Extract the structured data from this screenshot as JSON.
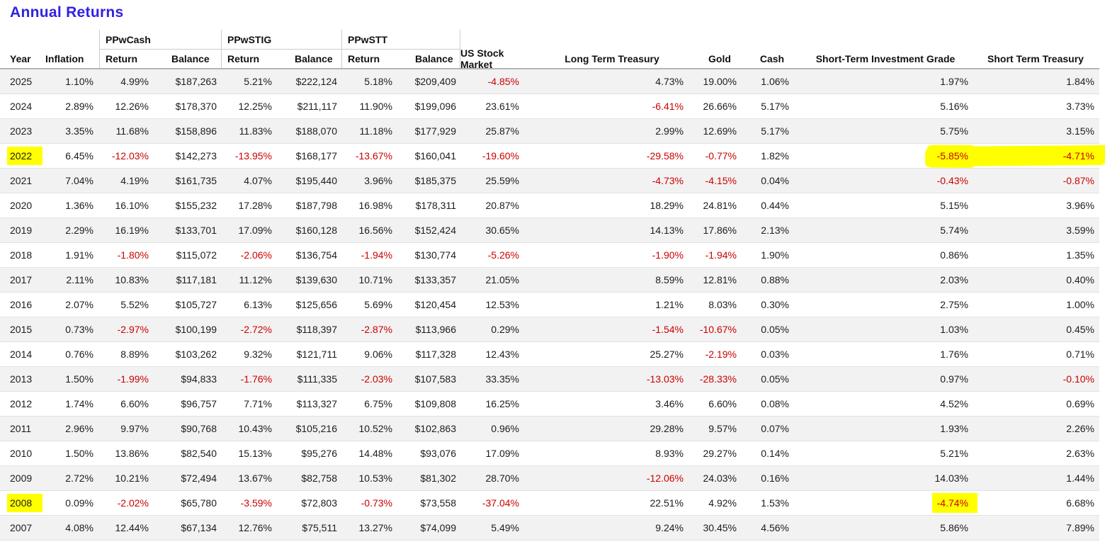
{
  "page_title": "Annual Returns",
  "colors": {
    "title_blue": "#3121e4",
    "negative_red": "#cc0000",
    "highlight_yellow": "#ffff00",
    "row_stripe": "#f2f2f2",
    "header_border": "#cccccc"
  },
  "table": {
    "groups": [
      {
        "label": "PPwCash"
      },
      {
        "label": "PPwSTIG"
      },
      {
        "label": "PPwSTT"
      }
    ],
    "columns": [
      {
        "key": "year",
        "label": "Year"
      },
      {
        "key": "inflation",
        "label": "Inflation"
      },
      {
        "key": "ppwcash-return",
        "label": "Return"
      },
      {
        "key": "ppwcash-balance",
        "label": "Balance"
      },
      {
        "key": "ppwstig-return",
        "label": "Return"
      },
      {
        "key": "ppwstig-balance",
        "label": "Balance"
      },
      {
        "key": "ppwstt-return",
        "label": "Return"
      },
      {
        "key": "ppwstt-balance",
        "label": "Balance"
      },
      {
        "key": "us-stock-market",
        "label": "US Stock Market"
      },
      {
        "key": "long-term-treasury",
        "label": "Long Term Treasury"
      },
      {
        "key": "gold",
        "label": "Gold"
      },
      {
        "key": "cash",
        "label": "Cash"
      },
      {
        "key": "short-term-investment-grade",
        "label": "Short-Term Investment Grade"
      },
      {
        "key": "short-term-treasury",
        "label": "Short Term Treasury"
      }
    ],
    "rows": [
      [
        "2025",
        "1.10%",
        "4.99%",
        "$187,263",
        "5.21%",
        "$222,124",
        "5.18%",
        "$209,409",
        "-4.85%",
        "4.73%",
        "19.00%",
        "1.06%",
        "1.97%",
        "1.84%"
      ],
      [
        "2024",
        "2.89%",
        "12.26%",
        "$178,370",
        "12.25%",
        "$211,117",
        "11.90%",
        "$199,096",
        "23.61%",
        "-6.41%",
        "26.66%",
        "5.17%",
        "5.16%",
        "3.73%"
      ],
      [
        "2023",
        "3.35%",
        "11.68%",
        "$158,896",
        "11.83%",
        "$188,070",
        "11.18%",
        "$177,929",
        "25.87%",
        "2.99%",
        "12.69%",
        "5.17%",
        "5.75%",
        "3.15%"
      ],
      [
        "2022",
        "6.45%",
        "-12.03%",
        "$142,273",
        "-13.95%",
        "$168,177",
        "-13.67%",
        "$160,041",
        "-19.60%",
        "-29.58%",
        "-0.77%",
        "1.82%",
        "-5.85%",
        "-4.71%"
      ],
      [
        "2021",
        "7.04%",
        "4.19%",
        "$161,735",
        "4.07%",
        "$195,440",
        "3.96%",
        "$185,375",
        "25.59%",
        "-4.73%",
        "-4.15%",
        "0.04%",
        "-0.43%",
        "-0.87%"
      ],
      [
        "2020",
        "1.36%",
        "16.10%",
        "$155,232",
        "17.28%",
        "$187,798",
        "16.98%",
        "$178,311",
        "20.87%",
        "18.29%",
        "24.81%",
        "0.44%",
        "5.15%",
        "3.96%"
      ],
      [
        "2019",
        "2.29%",
        "16.19%",
        "$133,701",
        "17.09%",
        "$160,128",
        "16.56%",
        "$152,424",
        "30.65%",
        "14.13%",
        "17.86%",
        "2.13%",
        "5.74%",
        "3.59%"
      ],
      [
        "2018",
        "1.91%",
        "-1.80%",
        "$115,072",
        "-2.06%",
        "$136,754",
        "-1.94%",
        "$130,774",
        "-5.26%",
        "-1.90%",
        "-1.94%",
        "1.90%",
        "0.86%",
        "1.35%"
      ],
      [
        "2017",
        "2.11%",
        "10.83%",
        "$117,181",
        "11.12%",
        "$139,630",
        "10.71%",
        "$133,357",
        "21.05%",
        "8.59%",
        "12.81%",
        "0.88%",
        "2.03%",
        "0.40%"
      ],
      [
        "2016",
        "2.07%",
        "5.52%",
        "$105,727",
        "6.13%",
        "$125,656",
        "5.69%",
        "$120,454",
        "12.53%",
        "1.21%",
        "8.03%",
        "0.30%",
        "2.75%",
        "1.00%"
      ],
      [
        "2015",
        "0.73%",
        "-2.97%",
        "$100,199",
        "-2.72%",
        "$118,397",
        "-2.87%",
        "$113,966",
        "0.29%",
        "-1.54%",
        "-10.67%",
        "0.05%",
        "1.03%",
        "0.45%"
      ],
      [
        "2014",
        "0.76%",
        "8.89%",
        "$103,262",
        "9.32%",
        "$121,711",
        "9.06%",
        "$117,328",
        "12.43%",
        "25.27%",
        "-2.19%",
        "0.03%",
        "1.76%",
        "0.71%"
      ],
      [
        "2013",
        "1.50%",
        "-1.99%",
        "$94,833",
        "-1.76%",
        "$111,335",
        "-2.03%",
        "$107,583",
        "33.35%",
        "-13.03%",
        "-28.33%",
        "0.05%",
        "0.97%",
        "-0.10%"
      ],
      [
        "2012",
        "1.74%",
        "6.60%",
        "$96,757",
        "7.71%",
        "$113,327",
        "6.75%",
        "$109,808",
        "16.25%",
        "3.46%",
        "6.60%",
        "0.08%",
        "4.52%",
        "0.69%"
      ],
      [
        "2011",
        "2.96%",
        "9.97%",
        "$90,768",
        "10.43%",
        "$105,216",
        "10.52%",
        "$102,863",
        "0.96%",
        "29.28%",
        "9.57%",
        "0.07%",
        "1.93%",
        "2.26%"
      ],
      [
        "2010",
        "1.50%",
        "13.86%",
        "$82,540",
        "15.13%",
        "$95,276",
        "14.48%",
        "$93,076",
        "17.09%",
        "8.93%",
        "29.27%",
        "0.14%",
        "5.21%",
        "2.63%"
      ],
      [
        "2009",
        "2.72%",
        "10.21%",
        "$72,494",
        "13.67%",
        "$82,758",
        "10.53%",
        "$81,302",
        "28.70%",
        "-12.06%",
        "24.03%",
        "0.16%",
        "14.03%",
        "1.44%"
      ],
      [
        "2008",
        "0.09%",
        "-2.02%",
        "$65,780",
        "-3.59%",
        "$72,803",
        "-0.73%",
        "$73,558",
        "-37.04%",
        "22.51%",
        "4.92%",
        "1.53%",
        "-4.74%",
        "6.68%"
      ],
      [
        "2007",
        "4.08%",
        "12.44%",
        "$67,134",
        "12.76%",
        "$75,511",
        "13.27%",
        "$74,099",
        "5.49%",
        "9.24%",
        "30.45%",
        "4.56%",
        "5.86%",
        "7.89%"
      ]
    ],
    "highlights": {
      "2022": {
        "year_cell": true,
        "streak": true
      },
      "2008": {
        "year_cell": true,
        "stig_cell": true
      }
    }
  }
}
